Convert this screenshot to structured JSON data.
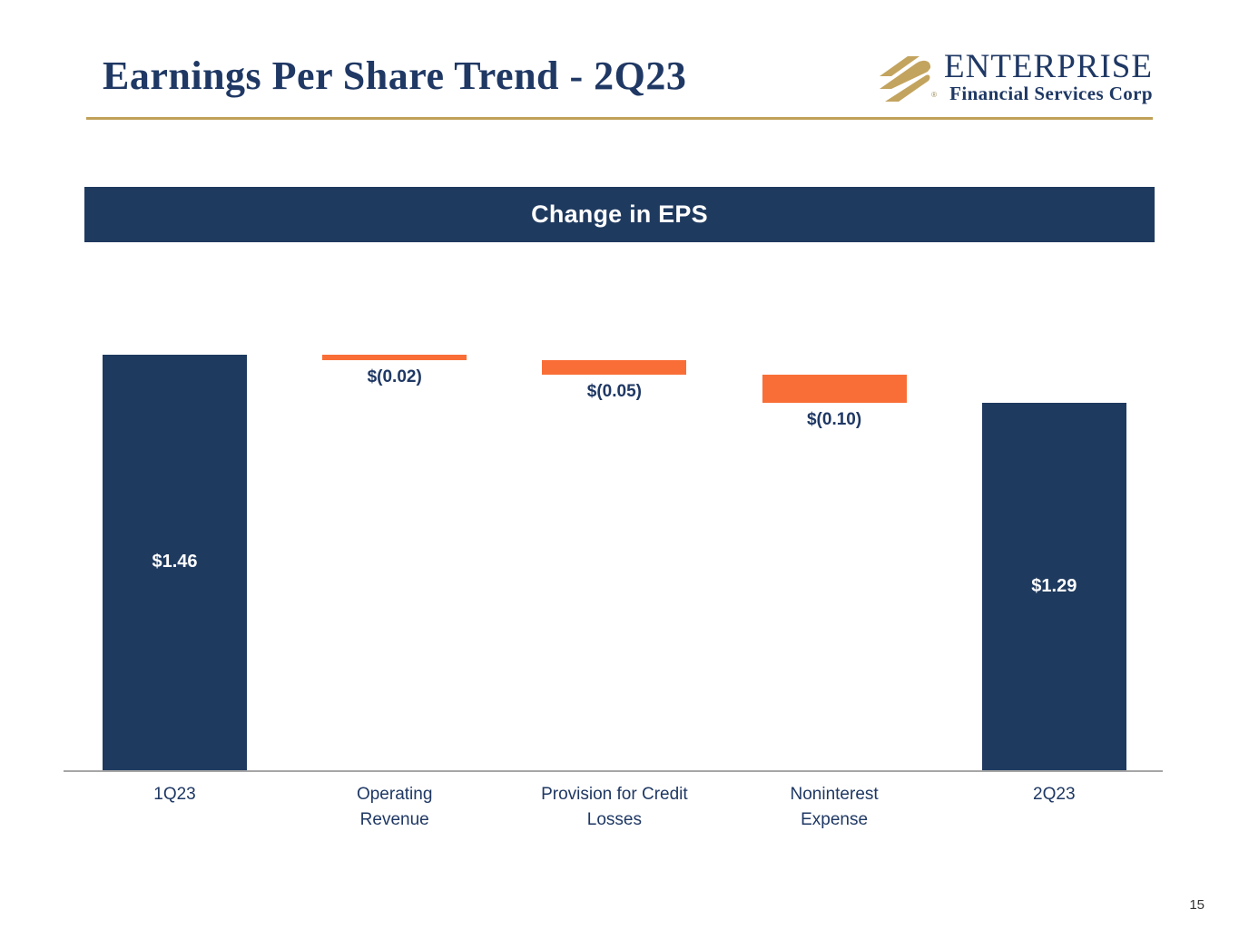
{
  "slide": {
    "title": "Earnings Per Share Trend - 2Q23",
    "page_number": "15"
  },
  "logo": {
    "name": "ENTERPRISE",
    "tagline": "Financial Services Corp",
    "registered_mark": "®",
    "icon": "gold-diagonal-stripes-emblem",
    "colors": {
      "gold": "#C3A45F",
      "navy": "#1F3864"
    }
  },
  "banner": {
    "title": "Change in EPS",
    "background": "#1F3A5F",
    "text_color": "#FFFFFF"
  },
  "chart_data": {
    "type": "bar",
    "subtype": "waterfall",
    "title": "Change in EPS",
    "categories": [
      "1Q23",
      "Operating Revenue",
      "Provision for Credit Losses",
      "Noninterest Expense",
      "2Q23"
    ],
    "category_lines": [
      [
        "1Q23"
      ],
      [
        "Operating",
        "Revenue"
      ],
      [
        "Provision for Credit",
        "Losses"
      ],
      [
        "Noninterest",
        "Expense"
      ],
      [
        "2Q23"
      ]
    ],
    "steps": [
      {
        "category": "1Q23",
        "kind": "total",
        "value": 1.46,
        "label": "$1.46"
      },
      {
        "category": "Operating Revenue",
        "kind": "delta",
        "value": -0.02,
        "label": "$(0.02)"
      },
      {
        "category": "Provision for Credit Losses",
        "kind": "delta",
        "value": -0.05,
        "label": "$(0.05)"
      },
      {
        "category": "Noninterest Expense",
        "kind": "delta",
        "value": -0.1,
        "label": "$(0.10)"
      },
      {
        "category": "2Q23",
        "kind": "total",
        "value": 1.29,
        "label": "$1.29"
      }
    ],
    "ylim": [
      0,
      1.46
    ],
    "gridlines": false,
    "legend": false,
    "colors": {
      "total": "#1F3A5F",
      "delta": "#F96E37",
      "axis_line": "#A6A6A6",
      "value_label_on_total": "#FFFFFF",
      "value_label_on_delta": "#1F3864",
      "category_label": "#1F3864"
    }
  }
}
